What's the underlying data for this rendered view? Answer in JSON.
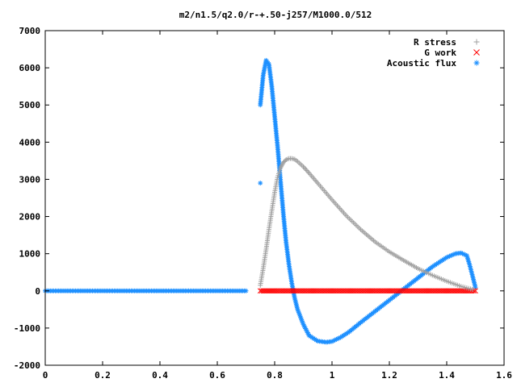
{
  "chart_data": {
    "type": "scatter",
    "title": "m2/n1.5/q2.0/r-+.50-j257/M1000.0/512",
    "xlabel": "",
    "ylabel": "",
    "xlim": [
      0,
      1.6
    ],
    "ylim": [
      -2000,
      7000
    ],
    "x_ticks": [
      0,
      0.2,
      0.4,
      0.6,
      0.8,
      1,
      1.2,
      1.4,
      1.6
    ],
    "y_ticks": [
      -2000,
      -1000,
      0,
      1000,
      2000,
      3000,
      4000,
      5000,
      6000,
      7000
    ],
    "x_tick_labels": [
      "0",
      "0.2",
      "0.4",
      "0.6",
      "0.8",
      "1",
      "1.2",
      "1.4",
      "1.6"
    ],
    "y_tick_labels": [
      "-2000",
      "-1000",
      "0",
      "1000",
      "2000",
      "3000",
      "4000",
      "5000",
      "6000",
      "7000"
    ],
    "grid": false,
    "legend_position": "top-right",
    "series": [
      {
        "name": "R stress",
        "marker": "plus",
        "color": "#a0a0a0",
        "x": [
          0.75,
          0.76,
          0.77,
          0.78,
          0.79,
          0.8,
          0.81,
          0.82,
          0.83,
          0.84,
          0.85,
          0.86,
          0.87,
          0.88,
          0.9,
          0.92,
          0.95,
          1.0,
          1.05,
          1.1,
          1.15,
          1.2,
          1.25,
          1.3,
          1.35,
          1.4,
          1.45,
          1.49
        ],
        "y": [
          150,
          600,
          1100,
          1650,
          2150,
          2650,
          3050,
          3300,
          3450,
          3530,
          3560,
          3560,
          3540,
          3480,
          3340,
          3170,
          2900,
          2450,
          2020,
          1650,
          1320,
          1050,
          820,
          600,
          420,
          260,
          120,
          40
        ]
      },
      {
        "name": "G work",
        "marker": "cross",
        "color": "#ff0000",
        "x": [
          0.75,
          0.8,
          0.9,
          1.0,
          1.1,
          1.2,
          1.3,
          1.4,
          1.5
        ],
        "y": [
          0,
          0,
          0,
          0,
          0,
          0,
          0,
          0,
          0
        ]
      },
      {
        "name": "Acoustic flux",
        "marker": "star",
        "color": "#1e90ff",
        "x": [
          0,
          0.1,
          0.2,
          0.3,
          0.4,
          0.5,
          0.6,
          0.7,
          0.75,
          0.75,
          0.76,
          0.77,
          0.78,
          0.79,
          0.8,
          0.81,
          0.82,
          0.83,
          0.84,
          0.85,
          0.86,
          0.87,
          0.88,
          0.9,
          0.92,
          0.95,
          0.98,
          1.0,
          1.03,
          1.06,
          1.1,
          1.15,
          1.2,
          1.25,
          1.3,
          1.35,
          1.4,
          1.43,
          1.45,
          1.47,
          1.48,
          1.49,
          1.5
        ],
        "y": [
          0,
          0,
          0,
          0,
          0,
          0,
          0,
          0,
          2900,
          5000,
          5800,
          6200,
          6100,
          5500,
          4700,
          3900,
          3000,
          2100,
          1300,
          700,
          200,
          -200,
          -500,
          -900,
          -1200,
          -1350,
          -1380,
          -1360,
          -1250,
          -1100,
          -850,
          -550,
          -250,
          50,
          350,
          650,
          900,
          1000,
          1020,
          950,
          700,
          400,
          100
        ]
      }
    ]
  }
}
